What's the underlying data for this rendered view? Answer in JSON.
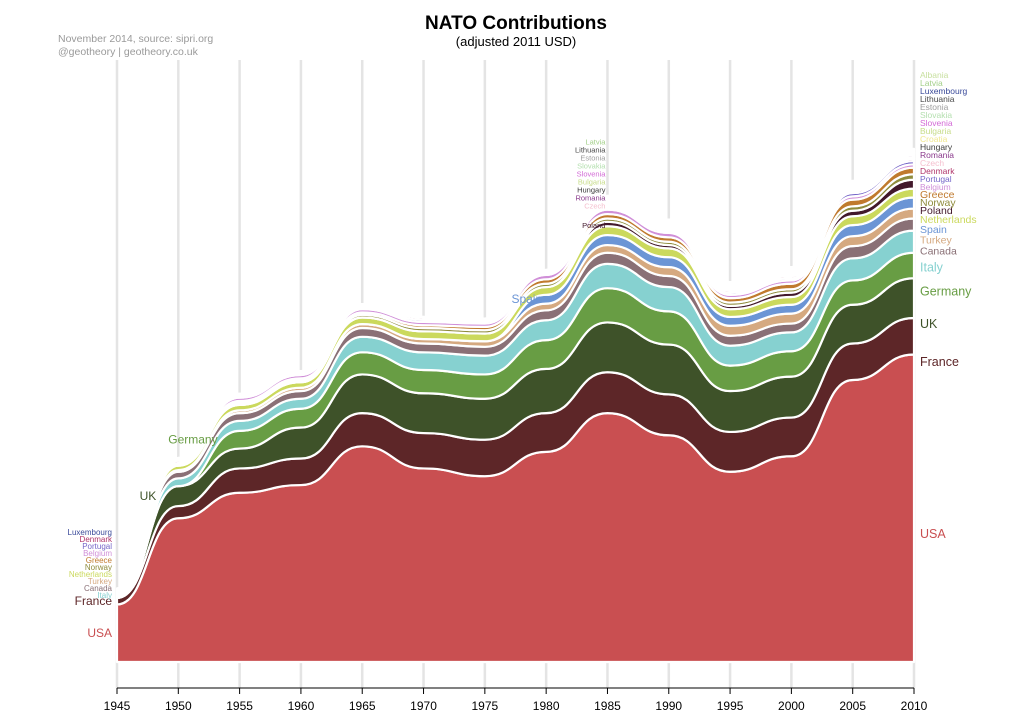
{
  "chart_data": {
    "type": "area",
    "title": "NATO Contributions",
    "subtitle": "(adjusted 2011 USD)",
    "credits": [
      "November 2014, source: sipri.org",
      "@geotheory | geotheory.co.uk"
    ],
    "x": [
      1945,
      1950,
      1955,
      1960,
      1965,
      1970,
      1975,
      1980,
      1985,
      1990,
      1995,
      2000,
      2005,
      2010
    ],
    "x_ticks": [
      "1945",
      "1950",
      "1955",
      "1960",
      "1965",
      "1970",
      "1975",
      "1980",
      "1985",
      "1990",
      "1995",
      "2000",
      "2005",
      "2010"
    ],
    "grid": true,
    "stack_order": "bottom-to-top",
    "value_note": "values are relative band thicknesses read from the streamgraph (no y-axis shown)",
    "series": [
      {
        "name": "USA",
        "color": "#c94f51",
        "values": [
          52,
          130,
          153,
          160,
          195,
          175,
          168,
          190,
          225,
          205,
          172,
          186,
          255,
          278
        ]
      },
      {
        "name": "France",
        "color": "#5d2628",
        "values": [
          6,
          11,
          22,
          24,
          30,
          32,
          33,
          35,
          37,
          37,
          36,
          35,
          33,
          33
        ]
      },
      {
        "name": "UK",
        "color": "#3e5229",
        "values": [
          0,
          18,
          18,
          28,
          35,
          36,
          37,
          40,
          45,
          45,
          37,
          37,
          35,
          36
        ]
      },
      {
        "name": "Germany",
        "color": "#689d44",
        "values": [
          0,
          0,
          16,
          17,
          20,
          21,
          22,
          26,
          31,
          30,
          23,
          23,
          22,
          23
        ]
      },
      {
        "name": "Italy",
        "color": "#86d1d0",
        "values": [
          2,
          7,
          9,
          9,
          14,
          16,
          17,
          18,
          22,
          22,
          18,
          17,
          20,
          20
        ]
      },
      {
        "name": "Canada",
        "color": "#8a7076",
        "values": [
          1,
          6,
          7,
          7,
          8,
          8,
          8,
          9,
          10,
          10,
          9,
          8,
          11,
          11
        ]
      },
      {
        "name": "Turkey",
        "color": "#d5a980",
        "values": [
          0.5,
          1.5,
          2.5,
          3,
          3.5,
          4,
          5,
          6,
          7,
          8,
          9,
          9,
          9,
          9
        ]
      },
      {
        "name": "Spain",
        "color": "#6b95d5",
        "values": [
          0,
          0,
          0,
          0,
          0,
          0,
          0,
          8,
          9,
          9,
          8,
          8,
          10,
          10
        ]
      },
      {
        "name": "Netherlands",
        "color": "#cbd95d",
        "values": [
          1.5,
          4,
          5,
          5,
          6,
          7,
          7,
          7,
          8,
          8,
          7,
          7,
          8,
          8
        ]
      },
      {
        "name": "Poland",
        "color": "#42182b",
        "values": [
          0,
          0,
          0,
          0,
          0,
          0,
          0,
          0,
          4,
          3,
          3,
          4,
          5,
          8
        ]
      },
      {
        "name": "Norway",
        "color": "#8f8c3d",
        "values": [
          0.5,
          1.5,
          2,
          2,
          2.5,
          3,
          3,
          3,
          3,
          3,
          3,
          3,
          4,
          5
        ]
      },
      {
        "name": "Greece",
        "color": "#c07a2e",
        "values": [
          0.5,
          1,
          1.5,
          1.5,
          2,
          2.5,
          3,
          4,
          4,
          4,
          4,
          5,
          6,
          6
        ]
      },
      {
        "name": "Belgium",
        "color": "#d08fd8",
        "values": [
          1,
          2,
          3,
          3,
          3,
          3,
          3,
          4,
          4,
          4,
          3,
          3,
          3,
          3
        ]
      },
      {
        "name": "Portugal",
        "color": "#7566c8",
        "values": [
          0.5,
          1,
          1.5,
          1.5,
          2,
          2,
          2,
          2,
          2,
          2,
          2,
          2,
          3,
          3
        ]
      },
      {
        "name": "Denmark",
        "color": "#b0356a",
        "values": [
          0.5,
          1,
          1.5,
          1.5,
          2,
          2,
          2,
          2,
          2,
          2,
          2,
          2,
          2,
          2
        ]
      },
      {
        "name": "Czech",
        "color": "#f5c0cf",
        "values": [
          0,
          0,
          0,
          0,
          0,
          0,
          0,
          0,
          1.5,
          1.5,
          1.5,
          1.5,
          1.5,
          1.5
        ]
      },
      {
        "name": "Romania",
        "color": "#8a3a8c",
        "values": [
          0,
          0,
          0,
          0,
          0,
          0,
          0,
          0,
          2,
          1.5,
          1.5,
          1.5,
          2,
          2
        ]
      },
      {
        "name": "Hungary",
        "color": "#3a3a3a",
        "values": [
          0,
          0,
          0,
          0,
          0,
          0,
          0,
          0,
          1,
          1,
          1,
          1,
          1,
          1
        ]
      },
      {
        "name": "Croatia",
        "color": "#f0e890",
        "values": [
          0,
          0,
          0,
          0,
          0,
          0,
          0,
          0,
          0,
          0,
          0,
          0.5,
          0.5,
          0.5
        ]
      },
      {
        "name": "Bulgaria",
        "color": "#c7dc8a",
        "values": [
          0,
          0,
          0,
          0,
          0,
          0,
          0,
          0,
          1,
          1,
          0.5,
          0.5,
          0.5,
          0.5
        ]
      },
      {
        "name": "Slovenia",
        "color": "#d36ad6",
        "values": [
          0,
          0,
          0,
          0,
          0,
          0,
          0,
          0,
          0.5,
          0.5,
          0.5,
          0.5,
          0.5,
          0.5
        ]
      },
      {
        "name": "Slovakia",
        "color": "#b5e0b0",
        "values": [
          0,
          0,
          0,
          0,
          0,
          0,
          0,
          0,
          0.5,
          0.5,
          0.5,
          0.5,
          0.5,
          0.5
        ]
      },
      {
        "name": "Estonia",
        "color": "#9e9e9e",
        "values": [
          0,
          0,
          0,
          0,
          0,
          0,
          0,
          0,
          0.5,
          0.5,
          0.5,
          0.5,
          0.5,
          0.5
        ]
      },
      {
        "name": "Lithuania",
        "color": "#4a4a4a",
        "values": [
          0,
          0,
          0,
          0,
          0,
          0,
          0,
          0,
          0.5,
          0.5,
          0.5,
          0.5,
          0.5,
          0.5
        ]
      },
      {
        "name": "Luxembourg",
        "color": "#3a4a9a",
        "values": [
          0.5,
          0.5,
          0.5,
          0.5,
          0.5,
          0.5,
          0.5,
          0.5,
          0.5,
          0.5,
          0.5,
          0.5,
          0.5,
          0.5
        ]
      },
      {
        "name": "Latvia",
        "color": "#a4d08a",
        "values": [
          0,
          0,
          0,
          0,
          0,
          0,
          0,
          0,
          0.5,
          0.5,
          0.5,
          0.5,
          0.5,
          0.5
        ]
      },
      {
        "name": "Albania",
        "color": "#c8e0a0",
        "values": [
          0,
          0,
          0,
          0,
          0,
          0,
          0,
          0,
          0,
          0,
          0,
          0,
          0.5,
          0.5
        ]
      }
    ],
    "left_labels": [
      "USA",
      "France",
      "Italy",
      "Netherlands",
      "Belgium",
      "Norway",
      "Denmark",
      "Greece",
      "Portugal",
      "Luxembourg",
      "UK",
      "Germany",
      "Canada",
      "Turkey"
    ],
    "mid_labels": [
      "Spain",
      "Hungary",
      "Bulgaria",
      "Poland",
      "Romania",
      "Estonia",
      "Latvia",
      "Lithuania",
      "Slovakia",
      "Slovenia",
      "Czech"
    ],
    "right_labels": [
      "USA",
      "France",
      "UK",
      "Germany",
      "Italy",
      "Canada",
      "Turkey",
      "Spain",
      "Netherlands",
      "Poland",
      "Norway",
      "Greece",
      "Belgium",
      "Portugal",
      "Denmark",
      "Czech",
      "Romania",
      "Hungary",
      "Croatia",
      "Bulgaria",
      "Slovenia",
      "Slovakia",
      "Estonia",
      "Lithuania",
      "Luxembourg",
      "Latvia",
      "Albania"
    ]
  }
}
